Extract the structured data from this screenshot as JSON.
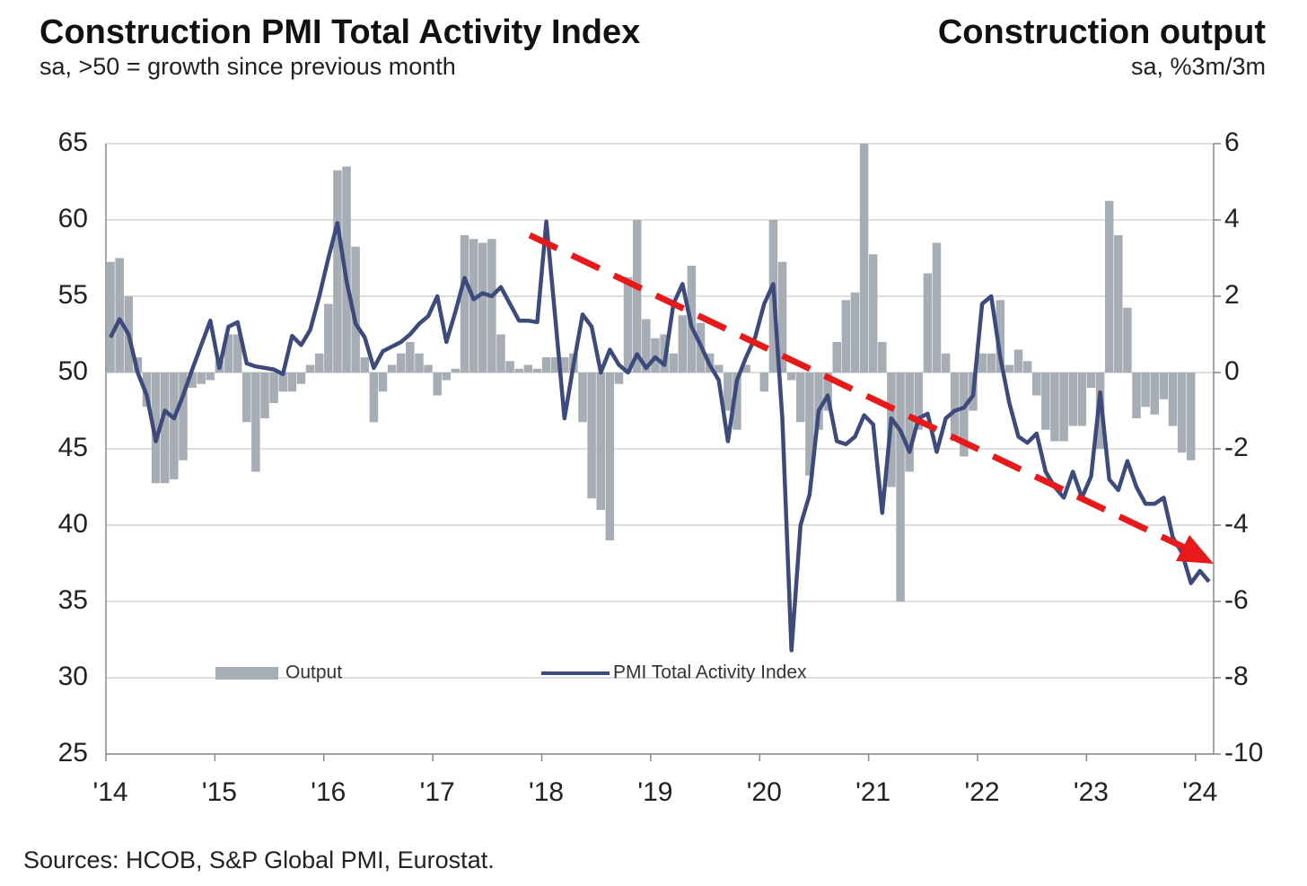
{
  "chart_data": {
    "type": "combo",
    "title": "Construction PMI Total Activity Index",
    "subtitle": "sa, >50 = growth since previous month",
    "y2_title": "Construction output",
    "y2_subtitle": "sa, %3m/3m",
    "source": "Sources: HCOB, S&P Global PMI, Eurostat.",
    "categories": [
      "'14",
      null,
      null,
      null,
      null,
      null,
      null,
      null,
      null,
      null,
      null,
      null,
      "'15",
      null,
      null,
      null,
      null,
      null,
      null,
      null,
      null,
      null,
      null,
      null,
      "'16",
      null,
      null,
      null,
      null,
      null,
      null,
      null,
      null,
      null,
      null,
      null,
      "'17",
      null,
      null,
      null,
      null,
      null,
      null,
      null,
      null,
      null,
      null,
      null,
      "'18",
      null,
      null,
      null,
      null,
      null,
      null,
      null,
      null,
      null,
      null,
      null,
      "'19",
      null,
      null,
      null,
      null,
      null,
      null,
      null,
      null,
      null,
      null,
      null,
      "'20",
      null,
      null,
      null,
      null,
      null,
      null,
      null,
      null,
      null,
      null,
      null,
      "'21",
      null,
      null,
      null,
      null,
      null,
      null,
      null,
      null,
      null,
      null,
      null,
      "'22",
      null,
      null,
      null,
      null,
      null,
      null,
      null,
      null,
      null,
      null,
      null,
      "'23",
      null,
      null,
      null,
      null,
      null,
      null,
      null,
      null,
      null,
      null,
      null,
      "'24",
      null
    ],
    "series": [
      {
        "name": "Output",
        "type": "bar",
        "axis": "y2",
        "color": "#a6adb4",
        "values": [
          2.9,
          3.0,
          2.0,
          0.4,
          -0.9,
          -2.9,
          -2.9,
          -2.8,
          -2.3,
          -0.4,
          -0.3,
          -0.2,
          0.3,
          1.0,
          1.0,
          -1.3,
          -2.6,
          -1.2,
          -0.8,
          -0.5,
          -0.5,
          -0.3,
          0.2,
          0.5,
          1.8,
          5.3,
          5.4,
          3.3,
          0.4,
          -1.3,
          -0.5,
          0.2,
          0.5,
          0.8,
          0.5,
          0.2,
          -0.6,
          -0.2,
          0.1,
          3.6,
          3.5,
          3.4,
          3.5,
          1.0,
          0.3,
          0.1,
          0.2,
          0.1,
          0.4,
          0.4,
          0.4,
          0.5,
          -1.3,
          -3.3,
          -3.6,
          -4.4,
          -0.3,
          2.5,
          4.0,
          1.4,
          0.9,
          1.0,
          0.5,
          1.5,
          2.8,
          1.3,
          0.5,
          0.2,
          -1.0,
          -1.5,
          0.2,
          0.0,
          -0.5,
          4.0,
          2.9,
          -0.2,
          -1.3,
          -2.7,
          -1.5,
          -1.0,
          0.8,
          1.9,
          2.1,
          6.0,
          3.1,
          0.8,
          -3.0,
          -6.0,
          -2.6,
          -1.5,
          2.6,
          3.4,
          0.5,
          -1.8,
          -2.2,
          -1.0,
          0.5,
          0.5,
          1.9,
          0.2,
          0.6,
          0.3,
          -0.6,
          -1.5,
          -1.8,
          -1.8,
          -1.4,
          -1.4,
          -0.4,
          -2.0,
          4.5,
          3.6,
          1.7,
          -1.2,
          -0.9,
          -1.1,
          -0.7,
          -1.4,
          -2.1,
          -2.3,
          null,
          null
        ]
      },
      {
        "name": "PMI Total Activity Index",
        "type": "line",
        "color": "#3d4a7c",
        "values": [
          52.3,
          53.5,
          52.5,
          50.0,
          48.5,
          45.5,
          47.5,
          47.0,
          48.5,
          50.2,
          51.8,
          53.4,
          50.3,
          53.0,
          53.3,
          50.6,
          50.4,
          50.3,
          50.2,
          49.9,
          52.4,
          51.8,
          52.8,
          55.0,
          57.5,
          59.8,
          56.0,
          53.2,
          52.3,
          50.3,
          51.4,
          51.7,
          52.0,
          52.5,
          53.2,
          53.7,
          55.0,
          52.0,
          54.0,
          56.2,
          54.8,
          55.2,
          55.0,
          55.6,
          54.5,
          53.4,
          53.4,
          53.3,
          59.9,
          53.5,
          47.0,
          50.5,
          53.8,
          53.0,
          50.0,
          51.5,
          50.5,
          50.0,
          51.2,
          50.3,
          51.0,
          50.5,
          54.5,
          55.8,
          53.0,
          51.8,
          50.5,
          49.5,
          45.5,
          49.5,
          51.0,
          52.3,
          54.5,
          55.8,
          47.0,
          31.8,
          40.0,
          42.0,
          47.5,
          48.5,
          45.5,
          45.3,
          45.8,
          47.2,
          46.6,
          40.8,
          47.0,
          46.2,
          44.8,
          47.0,
          47.3,
          44.8,
          47.0,
          47.5,
          47.7,
          48.5,
          54.5,
          55.0,
          51.0,
          48.0,
          45.8,
          45.4,
          46.0,
          43.5,
          42.5,
          41.8,
          43.5,
          41.8,
          43.2,
          48.7,
          43.0,
          42.3,
          44.2,
          42.5,
          41.4,
          41.4,
          41.8,
          39.2,
          38.2,
          36.2,
          37.0,
          36.3
        ]
      }
    ],
    "ylim": [
      25,
      65
    ],
    "yticks": [
      25,
      30,
      35,
      40,
      45,
      50,
      55,
      60,
      65
    ],
    "y2lim": [
      -10,
      6
    ],
    "y2ticks": [
      -10,
      -8,
      -6,
      -4,
      -2,
      0,
      2,
      4,
      6
    ],
    "grid": true
  }
}
